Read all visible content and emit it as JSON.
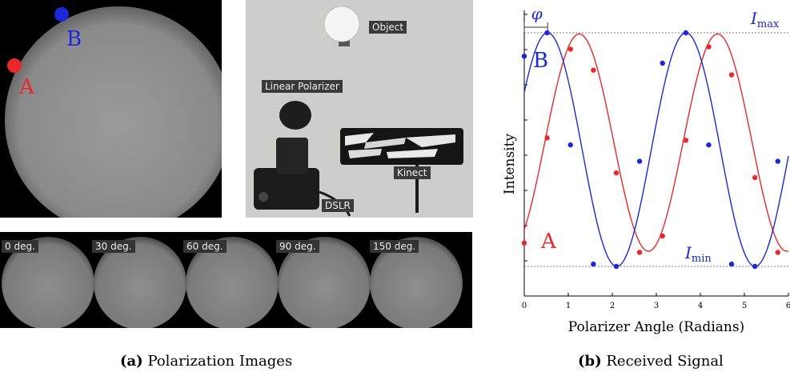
{
  "panel_a": {
    "point_labels": {
      "a": "A",
      "b": "B"
    },
    "setup_labels": {
      "object": "Object",
      "polarizer": "Linear Polarizer",
      "kinect": "Kinect",
      "dslr": "DSLR"
    },
    "strip_labels": [
      "0 deg.",
      "30 deg.",
      "60 deg.",
      "90 deg.",
      "150 deg."
    ],
    "caption_letter": "(a)",
    "caption_text": "Polarization Images"
  },
  "panel_b": {
    "caption_letter": "(b)",
    "caption_text": "Received Signal"
  },
  "colors": {
    "series_a": "#e8282a",
    "series_b": "#1a28d8"
  },
  "chart_data": {
    "type": "line",
    "xlabel": "Polarizer Angle (Radians)",
    "ylabel": "Intensity",
    "xlim": [
      0,
      6
    ],
    "xticks": [
      "0",
      "1",
      "2",
      "3",
      "4",
      "5",
      "6"
    ],
    "annotations": {
      "phase": "φ",
      "imax": "I",
      "imax_sub": "max",
      "imin": "I",
      "imin_sub": "min"
    },
    "series": [
      {
        "name": "A",
        "color": "#e8282a",
        "amplitude": 0.465,
        "offset": 0.53,
        "peak_at": 1.25,
        "points_x": [
          0,
          0.52,
          1.05,
          1.57,
          2.09,
          2.62,
          3.14,
          3.67,
          4.19,
          4.71,
          5.24,
          5.76
        ],
        "points_y": [
          0.1,
          0.55,
          0.93,
          0.84,
          0.4,
          0.06,
          0.13,
          0.54,
          0.94,
          0.82,
          0.38,
          0.06
        ]
      },
      {
        "name": "B",
        "color": "#1a28d8",
        "amplitude": 0.5,
        "offset": 0.5,
        "peak_at": 0.53,
        "points_x": [
          0,
          0.52,
          1.05,
          1.57,
          2.09,
          2.62,
          3.14,
          3.67,
          4.19,
          4.71,
          5.24,
          5.76
        ],
        "points_y": [
          0.9,
          1.0,
          0.52,
          0.01,
          0.0,
          0.45,
          0.87,
          1.0,
          0.52,
          0.01,
          0.0,
          0.45
        ]
      }
    ]
  }
}
